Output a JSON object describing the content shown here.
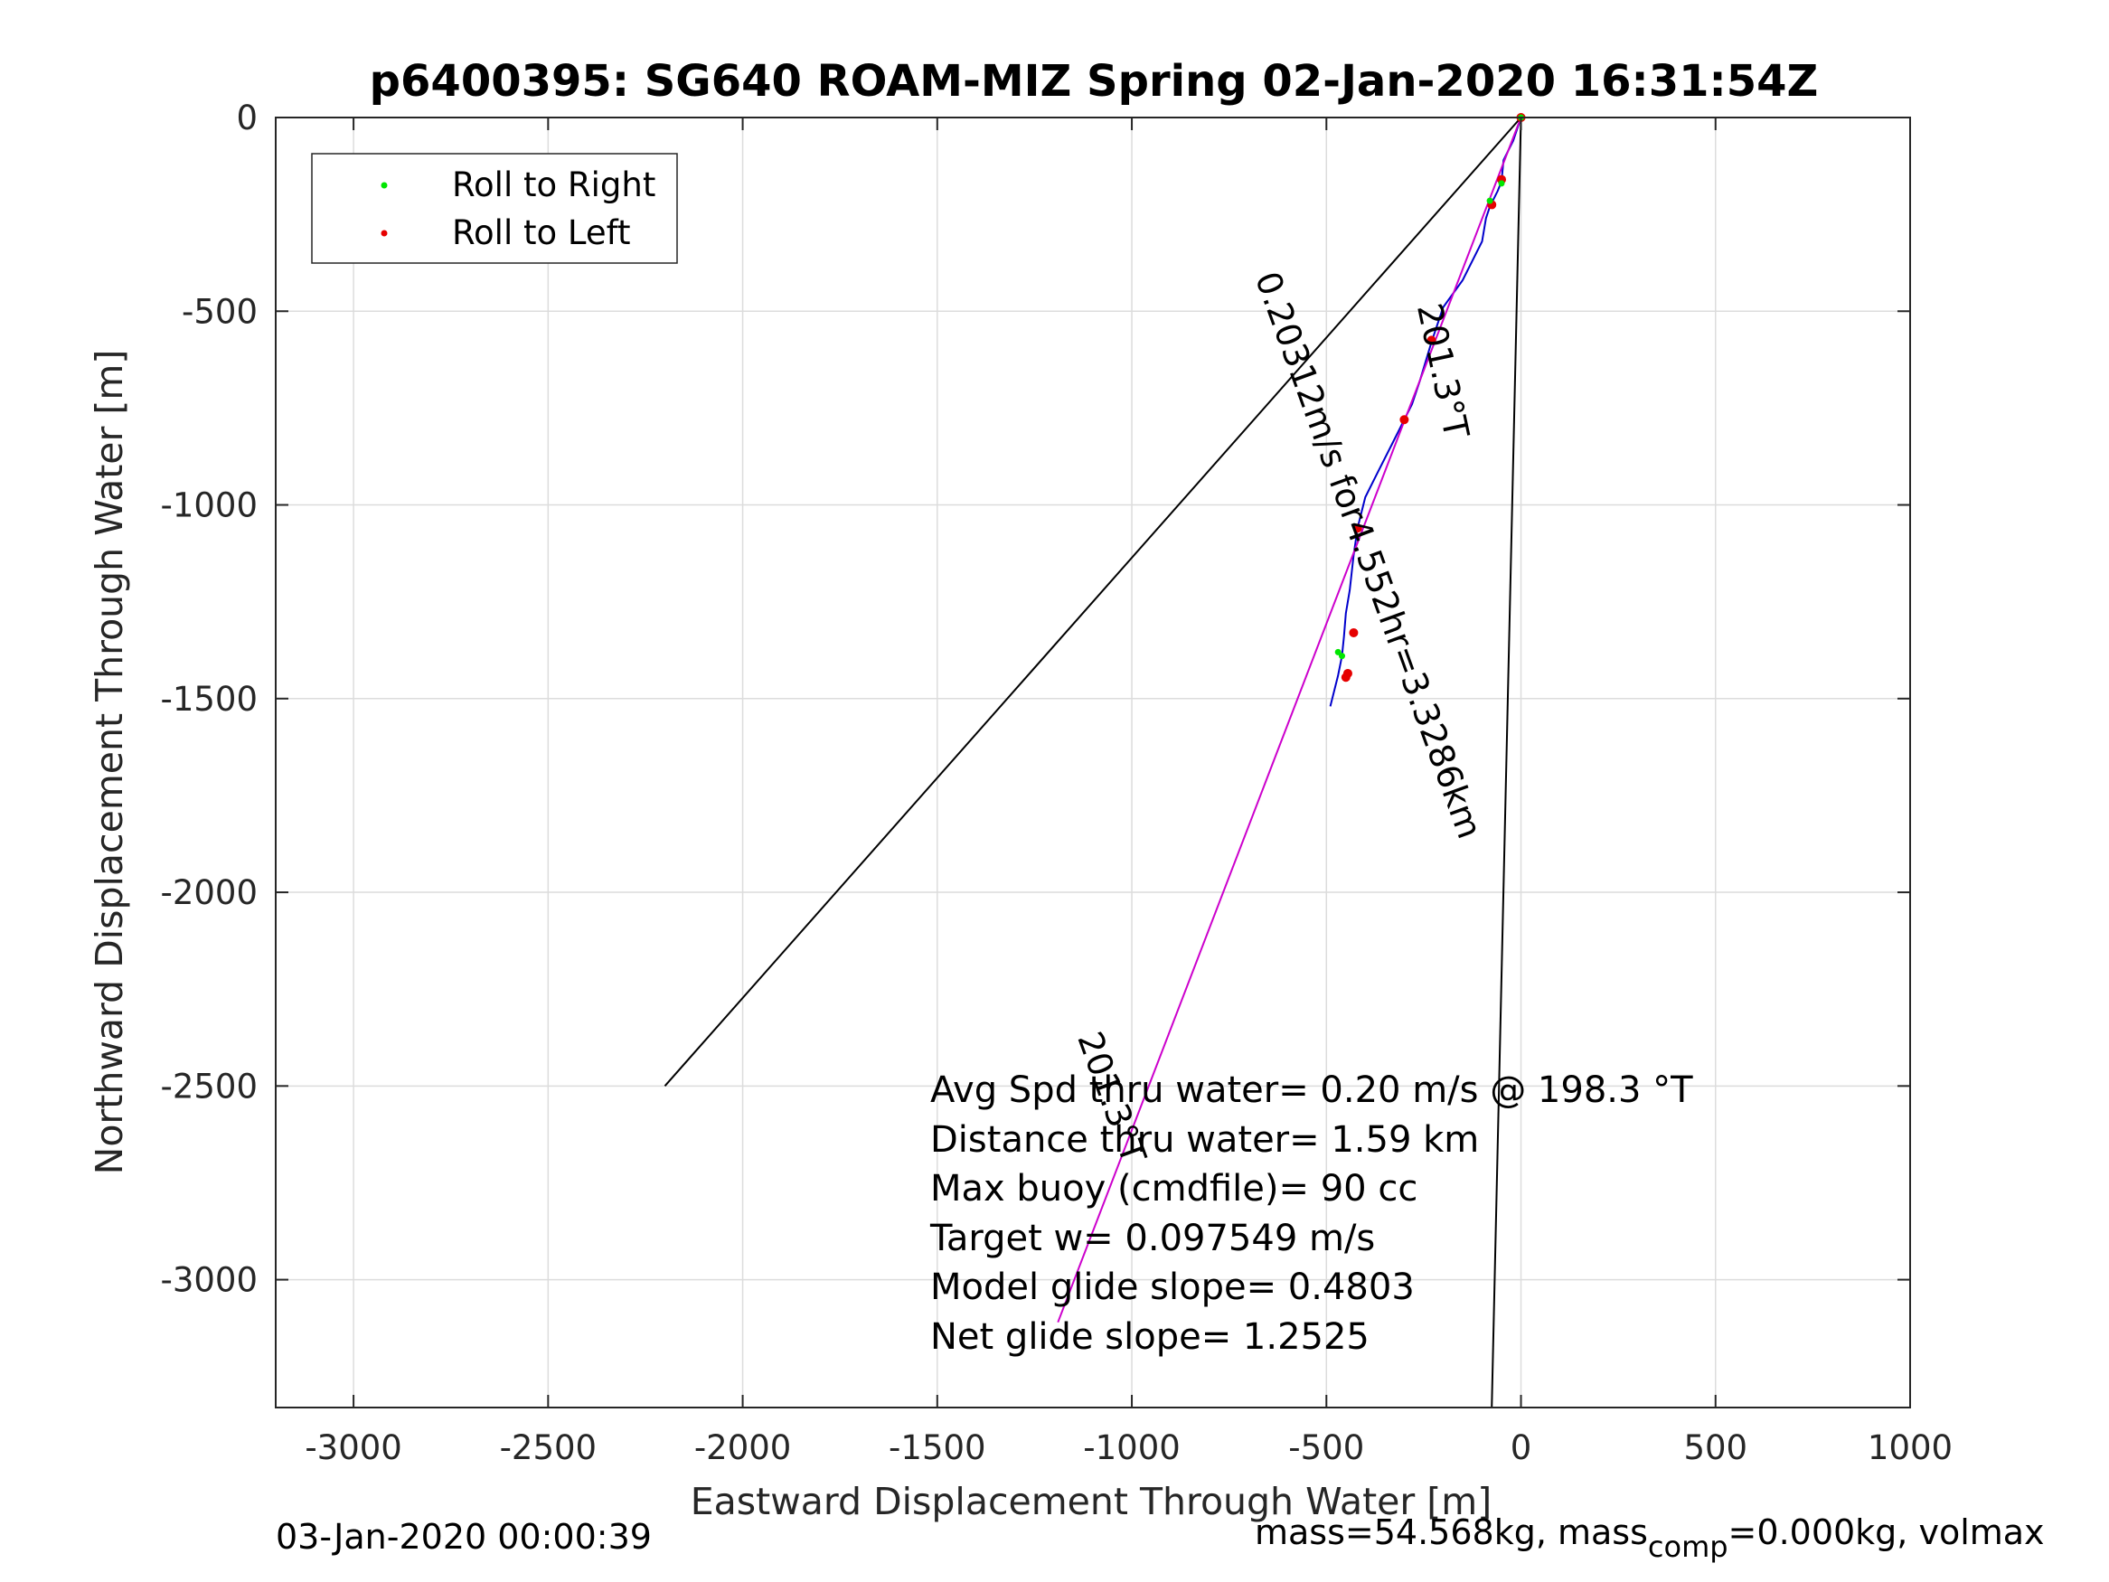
{
  "chart_data": {
    "type": "line",
    "title": "p6400395: SG640 ROAM-MIZ Spring 02-Jan-2020 16:31:54Z",
    "xlabel": "Eastward Displacement Through Water [m]",
    "ylabel": "Northward Displacement Through Water [m]",
    "xlim": [
      -3200,
      1000
    ],
    "ylim": [
      -3330,
      0
    ],
    "x_ticks": [
      -3000,
      -2500,
      -2000,
      -1500,
      -1000,
      -500,
      0,
      500,
      1000
    ],
    "y_ticks": [
      0,
      -500,
      -1000,
      -1500,
      -2000,
      -2500,
      -3000
    ],
    "x_tick_labels": [
      "-3000",
      "-2500",
      "-2000",
      "-1500",
      "-1000",
      "-500",
      "0",
      "500",
      "1000"
    ],
    "y_tick_labels": [
      "0",
      "-500",
      "-1000",
      "-1500",
      "-2000",
      "-2500",
      "-3000"
    ],
    "grid": true,
    "legend_position": "top-left",
    "legend": [
      {
        "label": "Roll to Right",
        "color": "#00e600"
      },
      {
        "label": "Roll to Left",
        "color": "#e60000"
      }
    ],
    "series": [
      {
        "role": "track-thru-water",
        "color": "#0000cc",
        "x": [
          0,
          -20,
          -45,
          -50,
          -60,
          -75,
          -80,
          -90,
          -100,
          -150,
          -200,
          -230,
          -260,
          -280,
          -300,
          -330,
          -370,
          -400,
          -420,
          -430,
          -440,
          -450,
          -455,
          -460,
          -470,
          -490
        ],
        "y": [
          0,
          -60,
          -110,
          -165,
          -190,
          -220,
          -230,
          -260,
          -320,
          -420,
          -490,
          -580,
          -680,
          -740,
          -780,
          -840,
          -920,
          -980,
          -1060,
          -1130,
          -1220,
          -1280,
          -1340,
          -1390,
          -1440,
          -1520
        ]
      },
      {
        "role": "net-displacement",
        "color": "#cc00cc",
        "x": [
          0,
          -1190
        ],
        "y": [
          0,
          -3110
        ]
      },
      {
        "role": "envelope-left",
        "color": "#000000",
        "x": [
          0,
          -2200
        ],
        "y": [
          0,
          -2500
        ]
      },
      {
        "role": "envelope-right",
        "color": "#000000",
        "x": [
          0,
          -75
        ],
        "y": [
          0,
          -3330
        ]
      }
    ],
    "markers": {
      "roll_right": {
        "color": "#00e600",
        "x": [
          0,
          -50,
          -80,
          -460,
          -470
        ],
        "y": [
          0,
          -170,
          -215,
          -1390,
          -1380
        ]
      },
      "roll_left": {
        "color": "#e60000",
        "x": [
          0,
          -50,
          -75,
          -230,
          -300,
          -420,
          -430,
          -445,
          -450
        ],
        "y": [
          0,
          -160,
          -225,
          -575,
          -780,
          -1060,
          -1330,
          -1435,
          -1445
        ]
      }
    },
    "annotations": [
      {
        "text": "201.3°T",
        "x": -230,
        "y": -660,
        "angle": 78
      },
      {
        "text": "0.20312m/s for4.552hr=3.3286km",
        "x": -420,
        "y": -1140,
        "angle": 70
      },
      {
        "text": "201.3°T",
        "x": -1080,
        "y": -2540,
        "angle": 70
      }
    ],
    "stats": [
      "Avg Spd thru water=  0.20 m/s @ 198.3 °T",
      "Distance thru water=  1.59 km",
      "Max buoy (cmdfile)= 90 cc",
      "Target w= 0.097549 m/s",
      "Model glide slope= 0.4803",
      "Net glide slope= 1.2525"
    ],
    "footer_left": "03-Jan-2020 00:00:39",
    "footer_right_pre": "mass=54.568kg, mass",
    "footer_right_sub": "comp",
    "footer_right_post": "=0.000kg, volmax"
  }
}
